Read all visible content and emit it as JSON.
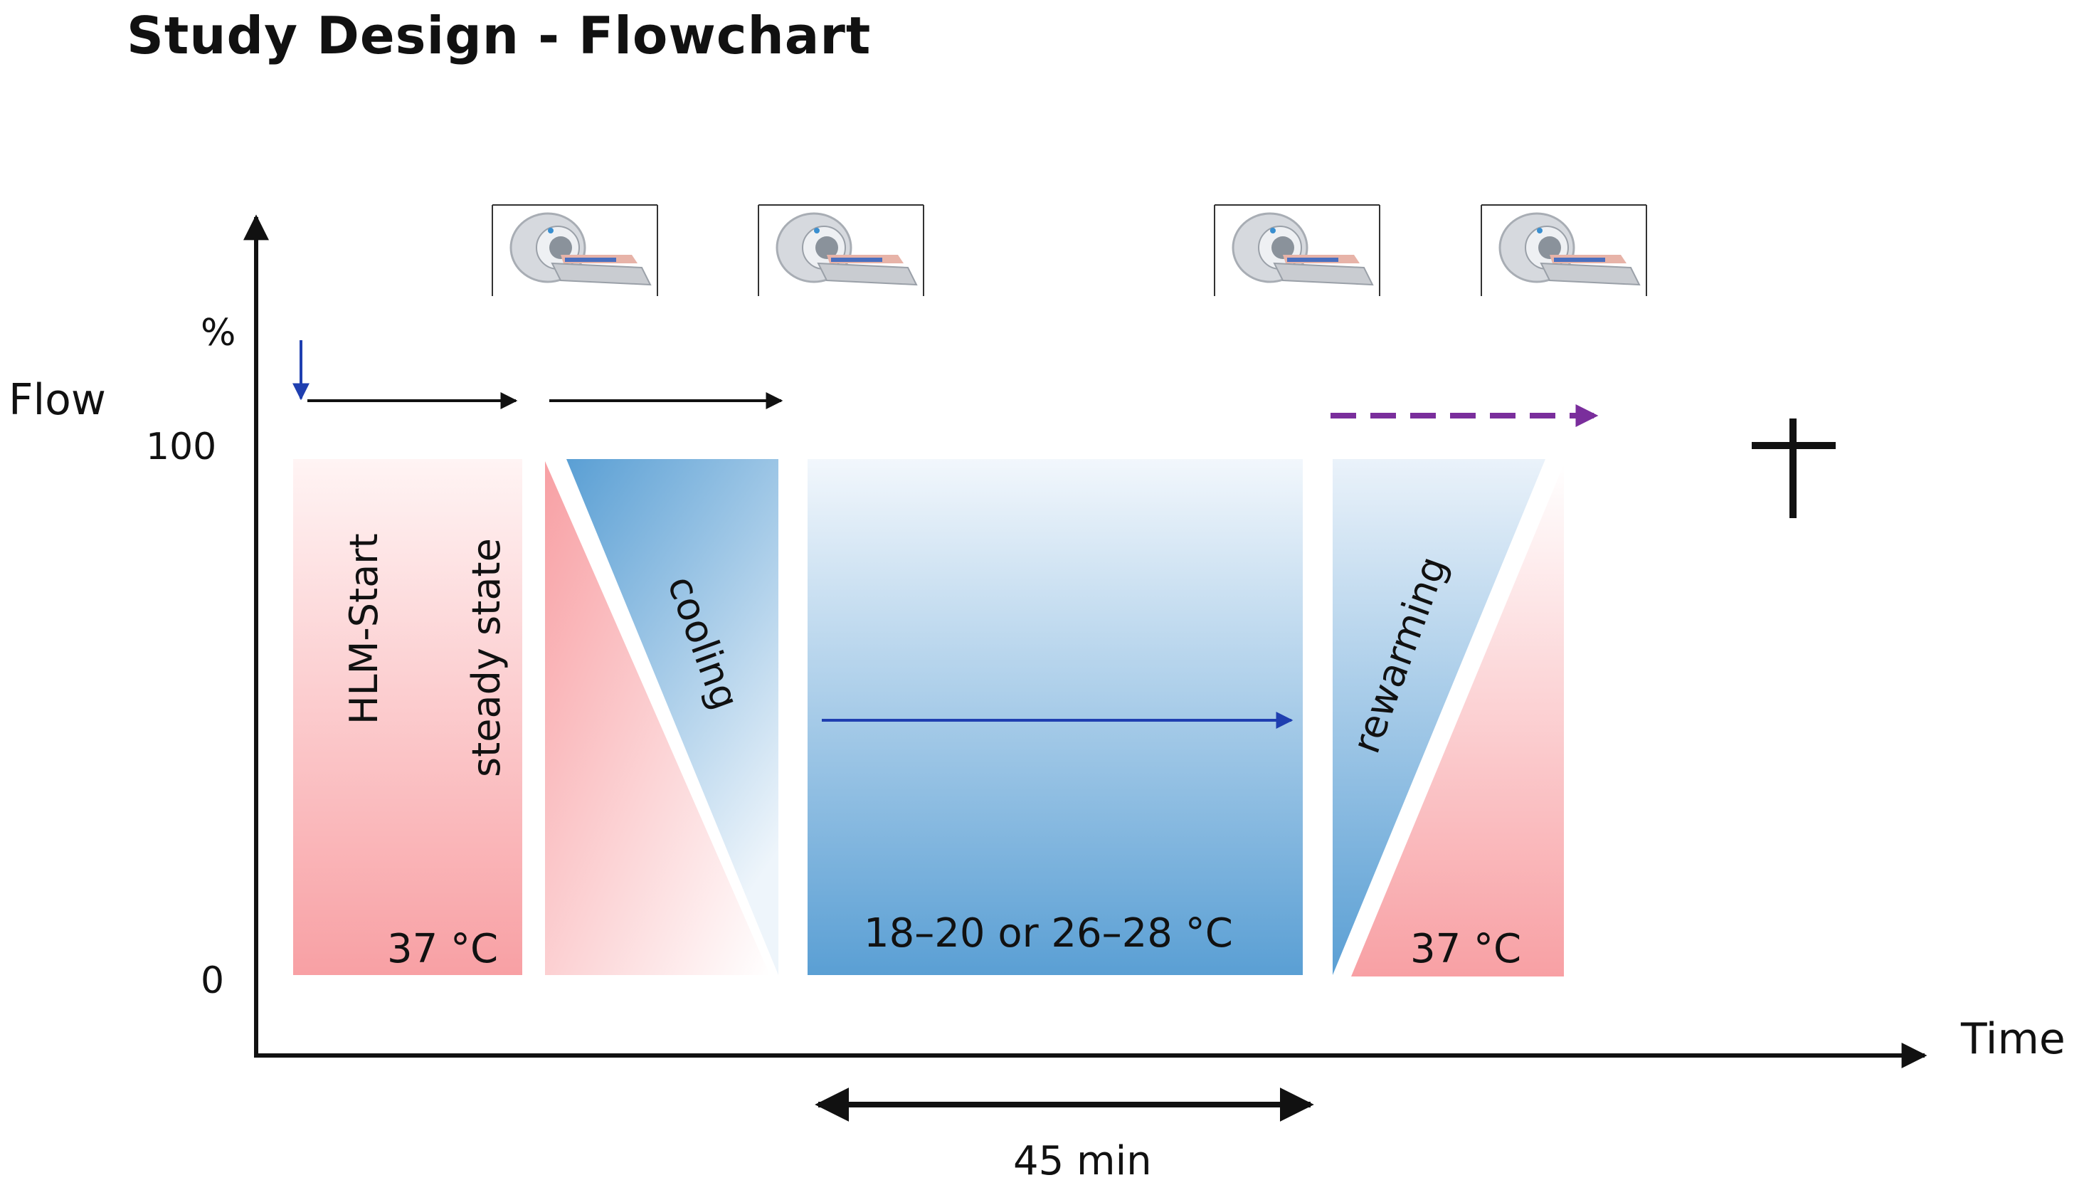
{
  "title": "Study Design - Flowchart",
  "axes": {
    "y_label": "Flow",
    "y_unit": "%",
    "y_ticks": [
      "100",
      "0"
    ],
    "x_label": "Time"
  },
  "phases": {
    "start_label": "HLM-Start",
    "steady_label": "steady state",
    "start_temp": "37 °C",
    "cooling_label": "cooling",
    "hypothermia_temp": "18–20 or 26–28 °C",
    "rewarming_label": "rewarming",
    "end_temp": "37 °C"
  },
  "duration_label": "45 min",
  "colors": {
    "warm": "#f8a0a4",
    "cold": "#5a9fd4",
    "arrow_blue": "#1f3fb0",
    "arrow_purple": "#7a2e9c"
  },
  "icons": [
    "mri-scanner-icon",
    "mri-scanner-icon",
    "mri-scanner-icon",
    "mri-scanner-icon",
    "cross-icon"
  ]
}
